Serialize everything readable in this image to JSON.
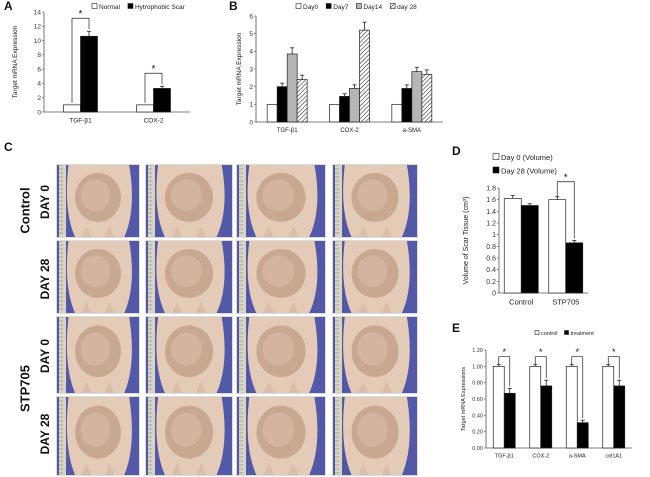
{
  "panels": {
    "A": {
      "label": "A",
      "chart_data": {
        "type": "bar",
        "ylabel": "Target mRNA Expression",
        "ylim": [
          0,
          14
        ],
        "yticks": [
          0,
          2,
          4,
          6,
          8,
          10,
          12,
          14
        ],
        "categories": [
          "TGF-β1",
          "COX-2"
        ],
        "series": [
          {
            "name": "Normal",
            "values": [
              1.0,
              1.0
            ],
            "fill": "#ffffff",
            "err": [
              0,
              0
            ]
          },
          {
            "name": "Hytrophobic Scar",
            "values": [
              10.6,
              3.3
            ],
            "fill": "#000000",
            "err": [
              0.7,
              0.3
            ]
          }
        ],
        "significance": [
          "*",
          "*"
        ]
      }
    },
    "B": {
      "label": "B",
      "chart_data": {
        "type": "bar",
        "ylabel": "Target mRNA Expression",
        "ylim": [
          0,
          6
        ],
        "yticks": [
          0,
          1,
          2,
          3,
          4,
          5,
          6
        ],
        "categories": [
          "TGF-β1",
          "COX-2",
          "a-SMA"
        ],
        "series": [
          {
            "name": "Day0",
            "values": [
              1.0,
              1.0,
              1.0
            ],
            "fill": "#ffffff",
            "err": [
              0,
              0,
              0
            ]
          },
          {
            "name": "Day7",
            "values": [
              2.0,
              1.45,
              1.9
            ],
            "fill": "#000000",
            "err": [
              0.2,
              0.15,
              0.2
            ]
          },
          {
            "name": "Day14",
            "values": [
              3.85,
              1.9,
              2.85
            ],
            "fill": "#b5b5b5",
            "err": [
              0.35,
              0.2,
              0.25
            ]
          },
          {
            "name": "day 28",
            "values": [
              2.4,
              5.2,
              2.7
            ],
            "fill": "hatch",
            "err": [
              0.25,
              0.45,
              0.25
            ]
          }
        ]
      }
    },
    "C": {
      "label": "C",
      "groups": [
        "Control",
        "STP705"
      ],
      "rows": [
        "DAY 0",
        "DAY 28",
        "DAY 0",
        "DAY 28"
      ]
    },
    "D": {
      "label": "D",
      "chart_data": {
        "type": "bar",
        "ylabel": "Volume of Scar Tissue (cm³)",
        "ylim": [
          0,
          1.8
        ],
        "yticks": [
          "0",
          "0.2",
          "0.4",
          "0.6",
          "0.8",
          "1",
          "1.2",
          "1.4",
          "1.6",
          "1.8"
        ],
        "categories": [
          "Control",
          "STP705"
        ],
        "series": [
          {
            "name": "Day 0 (Volume)",
            "values": [
              1.62,
              1.6
            ],
            "fill": "#ffffff",
            "err": [
              0.05,
              0.05
            ]
          },
          {
            "name": "Day 28 (Volume)",
            "values": [
              1.5,
              0.86
            ],
            "fill": "#000000",
            "err": [
              0.03,
              0.04
            ]
          }
        ],
        "significance": [
          "",
          "*"
        ]
      }
    },
    "E": {
      "label": "E",
      "chart_data": {
        "type": "bar",
        "ylabel": "Target mRNA Expressions",
        "ylim": [
          0,
          1.2
        ],
        "yticks": [
          "0.00",
          "0.20",
          "0.40",
          "0.60",
          "0.80",
          "1.00",
          "1.20"
        ],
        "categories": [
          "TGF-β1",
          "COX-2",
          "a-SMA",
          "col1A1"
        ],
        "series": [
          {
            "name": "control",
            "values": [
              1.0,
              1.0,
              1.0,
              1.0
            ],
            "fill": "#ffffff",
            "err": [
              0.02,
              0.02,
              0.02,
              0.02
            ]
          },
          {
            "name": "treatment",
            "values": [
              0.67,
              0.76,
              0.31,
              0.76
            ],
            "fill": "#000000",
            "err": [
              0.06,
              0.07,
              0.03,
              0.07
            ]
          }
        ],
        "significance": [
          "*",
          "*",
          "*",
          "*"
        ]
      }
    }
  }
}
